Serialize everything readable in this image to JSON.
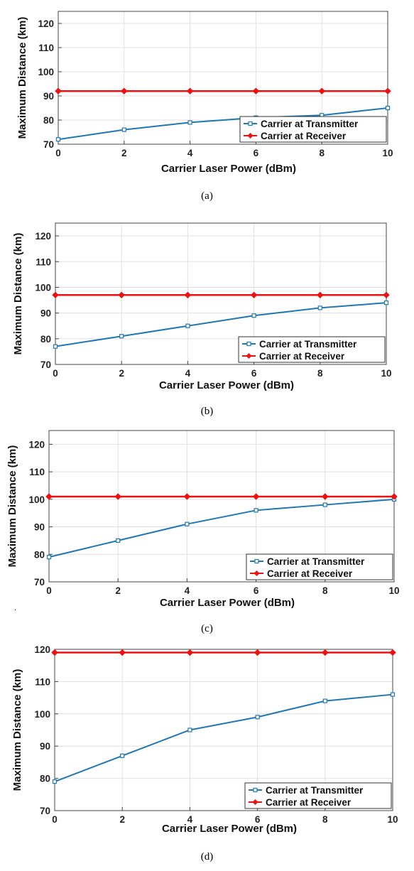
{
  "colors": {
    "series_transmitter": "#1f77b4",
    "series_receiver": "#ee1111",
    "grid": "#e0e0e0",
    "frame": "#444444"
  },
  "stray_mark": ".",
  "chart_data": [
    {
      "type": "line",
      "caption": "(a)",
      "xlabel": "Carrier Laser Power (dBm)",
      "ylabel": "Maximum Distance (km)",
      "x": [
        0,
        2,
        4,
        6,
        8,
        10
      ],
      "xlim": [
        0,
        10
      ],
      "ylim": [
        70,
        125
      ],
      "xticks": [
        "0",
        "2",
        "4",
        "6",
        "8",
        "10"
      ],
      "yticks": [
        "70",
        "80",
        "90",
        "100",
        "110",
        "120"
      ],
      "grid": true,
      "legend_position": "bottom-right",
      "series": [
        {
          "name": "Carrier at Transmitter",
          "marker": "square",
          "values": [
            72,
            76,
            79,
            81,
            82,
            85
          ]
        },
        {
          "name": "Carrier at Receiver",
          "marker": "diamond",
          "values": [
            92,
            92,
            92,
            92,
            92,
            92
          ]
        }
      ]
    },
    {
      "type": "line",
      "caption": "(b)",
      "xlabel": "Carrier Laser Power (dBm)",
      "ylabel": "Maximum Distance (km)",
      "x": [
        0,
        2,
        4,
        6,
        8,
        10
      ],
      "xlim": [
        0,
        10
      ],
      "ylim": [
        70,
        125
      ],
      "xticks": [
        "0",
        "2",
        "4",
        "6",
        "8",
        "10"
      ],
      "yticks": [
        "70",
        "80",
        "90",
        "100",
        "110",
        "120"
      ],
      "grid": true,
      "legend_position": "bottom-right",
      "series": [
        {
          "name": "Carrier at Transmitter",
          "marker": "square",
          "values": [
            77,
            81,
            85,
            89,
            92,
            94
          ]
        },
        {
          "name": "Carrier at Receiver",
          "marker": "diamond",
          "values": [
            97,
            97,
            97,
            97,
            97,
            97
          ]
        }
      ]
    },
    {
      "type": "line",
      "caption": "(c)",
      "xlabel": "Carrier Laser Power (dBm)",
      "ylabel": "Maximum Distance (km)",
      "x": [
        0,
        2,
        4,
        6,
        8,
        10
      ],
      "xlim": [
        0,
        10
      ],
      "ylim": [
        70,
        125
      ],
      "xticks": [
        "0",
        "2",
        "4",
        "6",
        "8",
        "10"
      ],
      "yticks": [
        "70",
        "80",
        "90",
        "100",
        "110",
        "120"
      ],
      "grid": true,
      "legend_position": "bottom-right",
      "series": [
        {
          "name": "Carrier at Transmitter",
          "marker": "square",
          "values": [
            79,
            85,
            91,
            96,
            98,
            100
          ]
        },
        {
          "name": "Carrier at Receiver",
          "marker": "diamond",
          "values": [
            101,
            101,
            101,
            101,
            101,
            101
          ]
        }
      ]
    },
    {
      "type": "line",
      "caption": "(d)",
      "xlabel": "Carrier Laser Power (dBm)",
      "ylabel": "Maximum Distance (km)",
      "x": [
        0,
        2,
        4,
        6,
        8,
        10
      ],
      "xlim": [
        0,
        10
      ],
      "ylim": [
        70,
        120
      ],
      "xticks": [
        "0",
        "2",
        "4",
        "6",
        "8",
        "10"
      ],
      "yticks": [
        "70",
        "80",
        "90",
        "100",
        "110",
        "120"
      ],
      "grid": true,
      "legend_position": "bottom-right",
      "series": [
        {
          "name": "Carrier at Transmitter",
          "marker": "square",
          "values": [
            79,
            87,
            95,
            99,
            104,
            106
          ]
        },
        {
          "name": "Carrier at Receiver",
          "marker": "diamond",
          "values": [
            119,
            119,
            119,
            119,
            119,
            119
          ]
        }
      ]
    }
  ]
}
